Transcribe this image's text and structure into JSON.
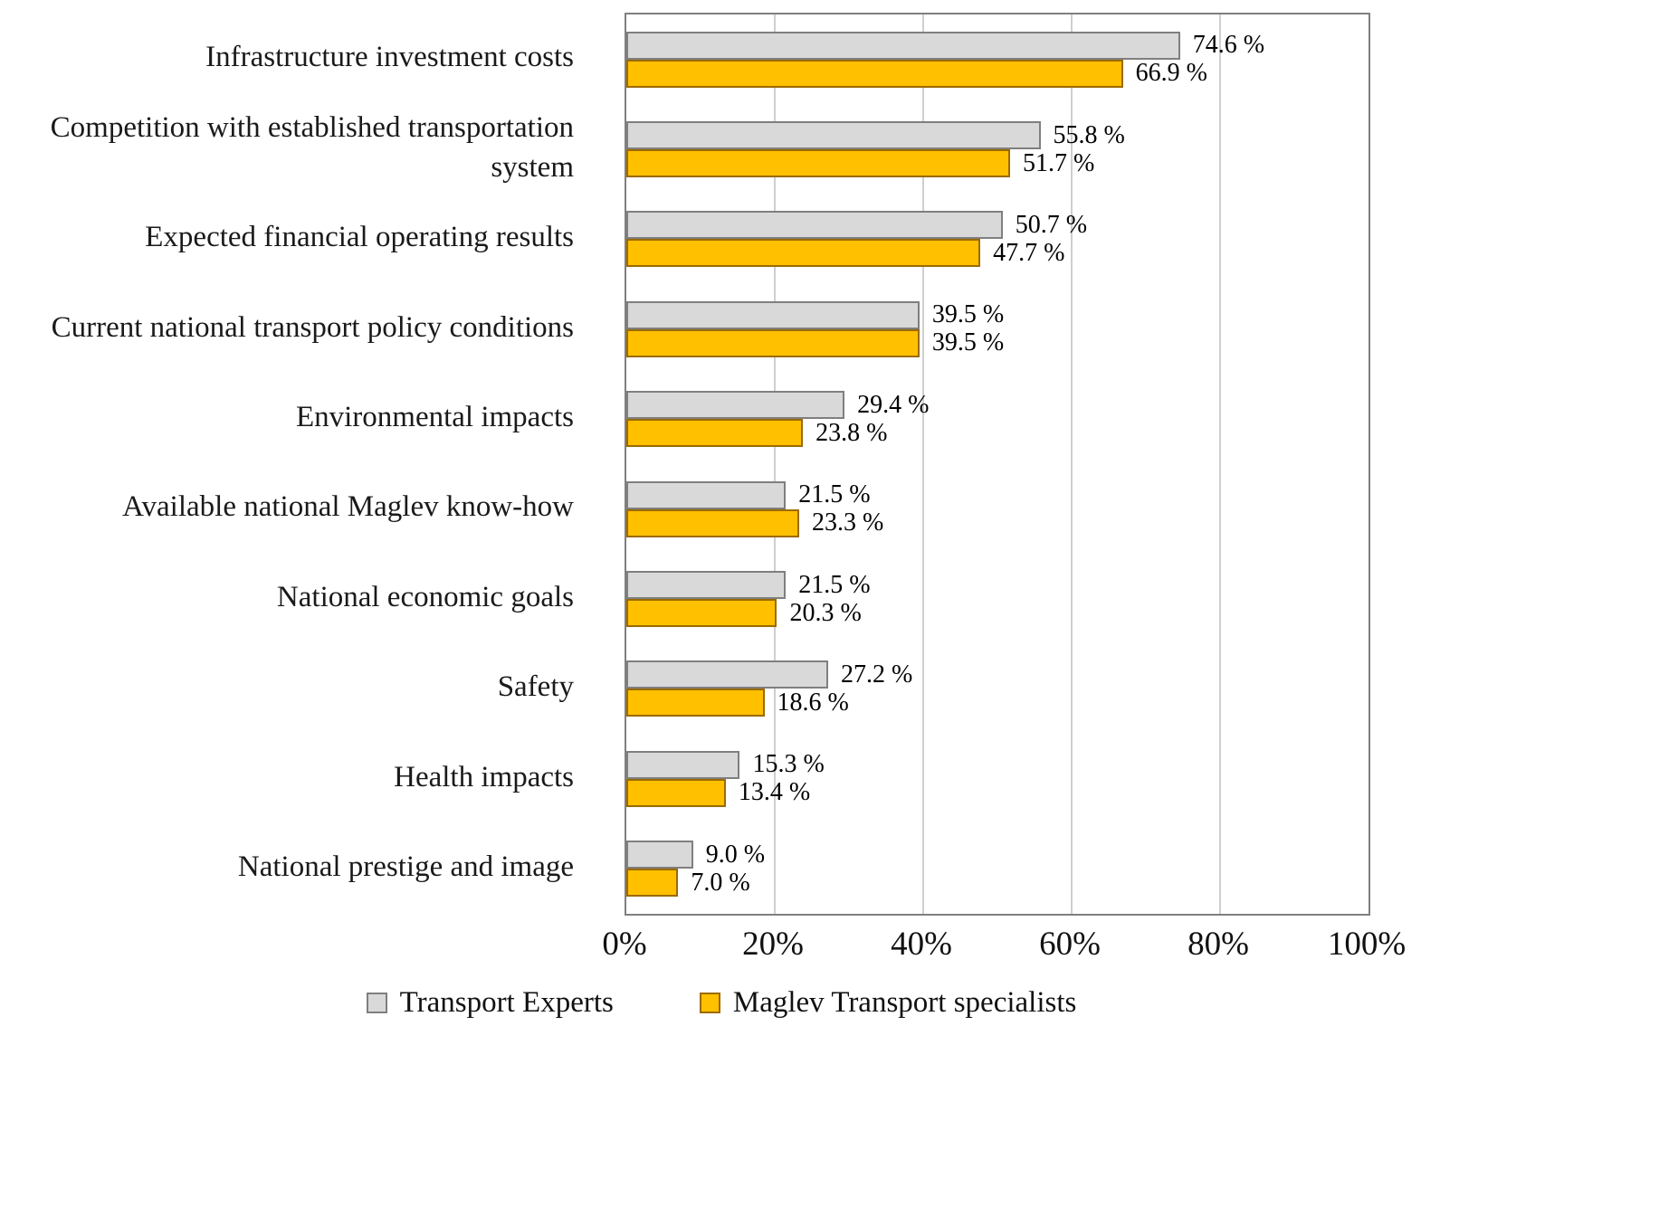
{
  "chart_data": {
    "type": "bar",
    "orientation": "horizontal",
    "title": "",
    "xlabel": "",
    "ylabel": "",
    "categories": [
      "Infrastructure investment costs",
      "Competition with established transportation system",
      "Expected financial operating results",
      "Current national transport policy conditions",
      "Environmental impacts",
      "Available national Maglev know-how",
      "National economic goals",
      "Safety",
      "Health impacts",
      "National prestige and image"
    ],
    "series": [
      {
        "name": "Transport Experts",
        "values": [
          74.6,
          55.8,
          50.7,
          39.5,
          29.4,
          21.5,
          21.5,
          27.2,
          15.3,
          9.0
        ],
        "fill": "#d9d9d9",
        "border": "#7f7f7f"
      },
      {
        "name": "Maglev Transport specialists",
        "values": [
          66.9,
          51.7,
          47.7,
          39.5,
          23.8,
          23.3,
          20.3,
          18.6,
          13.4,
          7.0
        ],
        "fill": "#ffc000",
        "border": "#9c6a00"
      }
    ],
    "xlim": [
      0,
      100
    ],
    "xtick_step": 20,
    "xtick_suffix": "%",
    "value_label_suffix": " %",
    "grid": true,
    "legend_position": "bottom"
  }
}
